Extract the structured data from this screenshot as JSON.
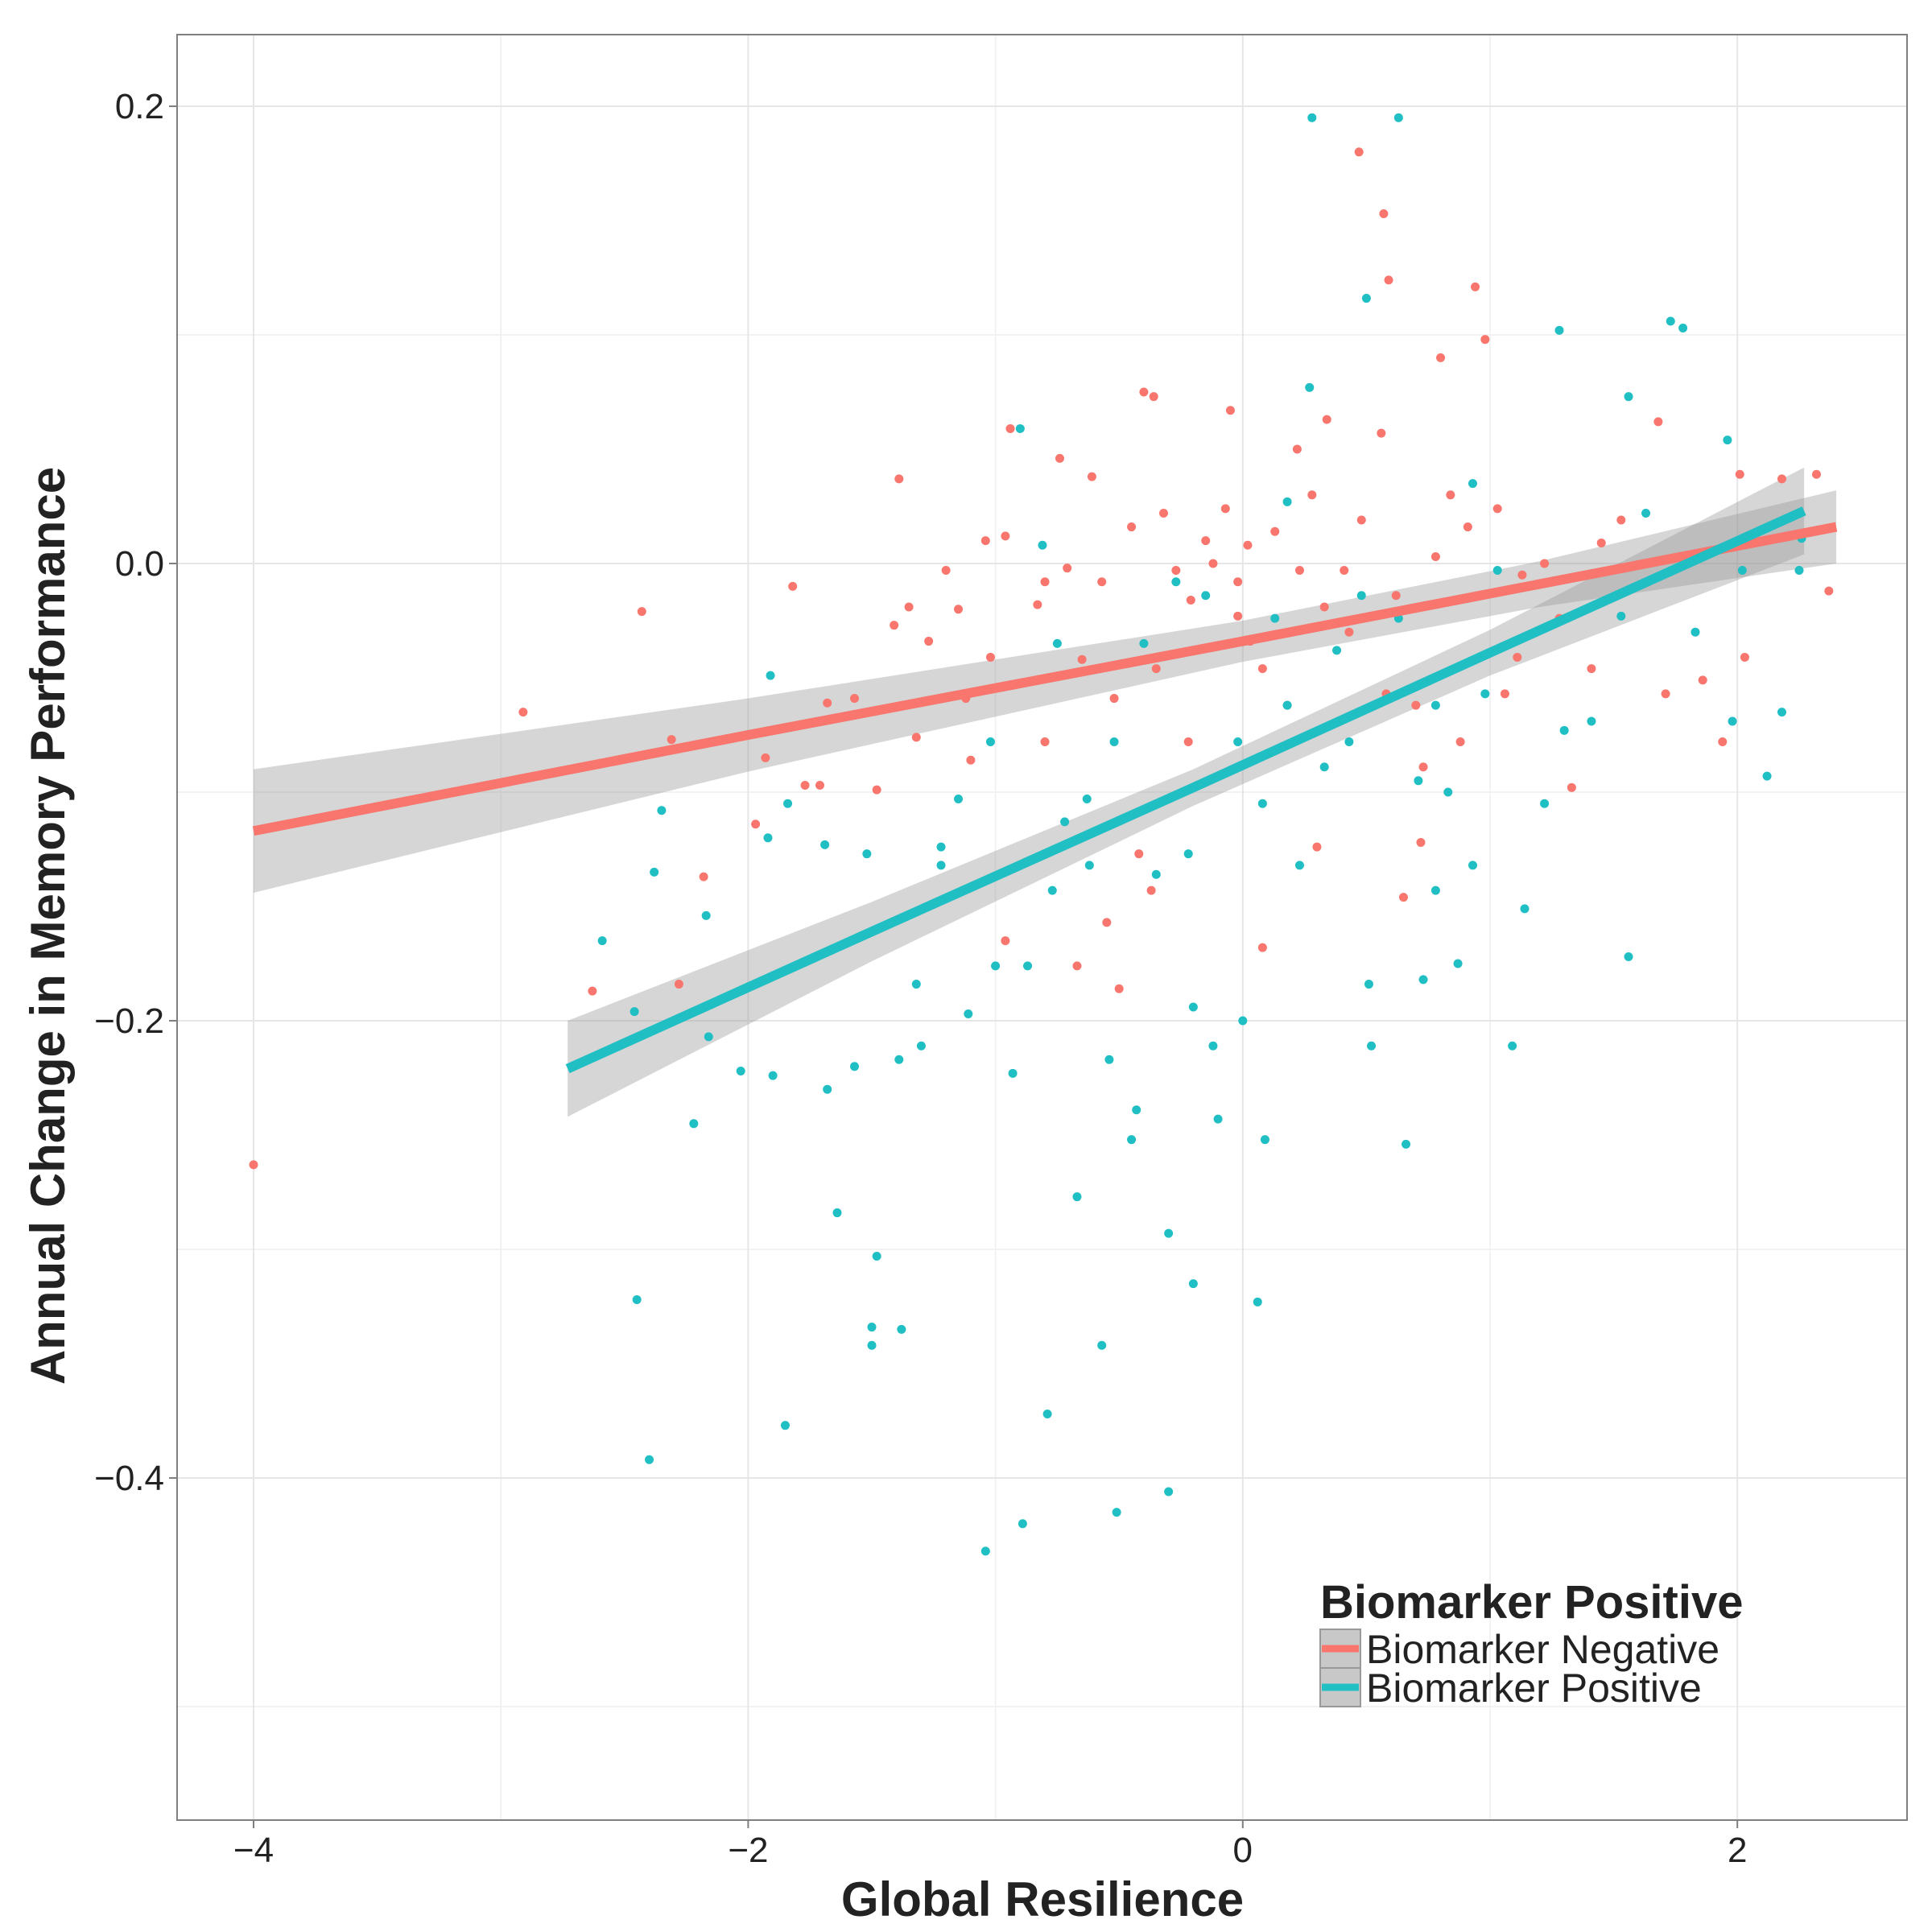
{
  "chart_data": {
    "type": "scatter",
    "xlabel": "Global Resilience",
    "ylabel": "Annual Change in Memory Performance",
    "xlim": [
      -4.3,
      2.7
    ],
    "ylim": [
      -0.55,
      0.23
    ],
    "x_ticks": [
      -4,
      -2,
      0,
      2
    ],
    "x_tick_labels": [
      "−4",
      "−2",
      "0",
      "2"
    ],
    "y_ticks": [
      0.2,
      0.0,
      -0.2,
      -0.4
    ],
    "y_tick_labels": [
      "0.2",
      "0.0",
      "−0.2",
      "−0.4"
    ],
    "grid": true,
    "legend": {
      "title": "Biomarker Positive",
      "placement": "bottom-right"
    },
    "series": [
      {
        "name": "Biomarker Negative",
        "color": "#F8766D",
        "points": [
          [
            -4.0,
            -0.263
          ],
          [
            -2.91,
            -0.065
          ],
          [
            -2.43,
            -0.021
          ],
          [
            -2.31,
            -0.077
          ],
          [
            -2.63,
            -0.187
          ],
          [
            -2.28,
            -0.184
          ],
          [
            -2.18,
            -0.137
          ],
          [
            -1.97,
            -0.114
          ],
          [
            -1.93,
            -0.085
          ],
          [
            -1.82,
            -0.01
          ],
          [
            -1.77,
            -0.097
          ],
          [
            -1.71,
            -0.097
          ],
          [
            -1.68,
            -0.061
          ],
          [
            -1.57,
            -0.059
          ],
          [
            -1.48,
            -0.099
          ],
          [
            -1.39,
            0.037
          ],
          [
            -1.41,
            -0.027
          ],
          [
            -1.35,
            -0.019
          ],
          [
            -1.27,
            -0.034
          ],
          [
            -1.2,
            -0.003
          ],
          [
            -1.15,
            -0.02
          ],
          [
            -1.12,
            -0.059
          ],
          [
            -1.04,
            0.01
          ],
          [
            -1.02,
            -0.041
          ],
          [
            -0.96,
            0.012
          ],
          [
            -0.94,
            0.059
          ],
          [
            -0.83,
            -0.018
          ],
          [
            -0.8,
            -0.008
          ],
          [
            -0.74,
            0.046
          ],
          [
            -0.71,
            -0.002
          ],
          [
            -0.65,
            -0.042
          ],
          [
            -0.61,
            0.038
          ],
          [
            -0.57,
            -0.008
          ],
          [
            -0.52,
            -0.059
          ],
          [
            -0.5,
            -0.186
          ],
          [
            -0.45,
            0.016
          ],
          [
            -0.4,
            0.075
          ],
          [
            -0.36,
            0.073
          ],
          [
            -0.35,
            -0.046
          ],
          [
            -0.32,
            0.022
          ],
          [
            -0.27,
            -0.003
          ],
          [
            -0.21,
            -0.016
          ],
          [
            -0.15,
            0.01
          ],
          [
            -0.12,
            0.0
          ],
          [
            -0.07,
            0.024
          ],
          [
            -0.05,
            0.067
          ],
          [
            -0.02,
            -0.023
          ],
          [
            0.03,
            -0.034
          ],
          [
            0.08,
            -0.046
          ],
          [
            0.13,
            0.014
          ],
          [
            0.18,
            -0.062
          ],
          [
            0.22,
            0.05
          ],
          [
            0.28,
            0.03
          ],
          [
            0.34,
            0.063
          ],
          [
            0.41,
            -0.003
          ],
          [
            0.43,
            -0.03
          ],
          [
            0.47,
            0.18
          ],
          [
            0.57,
            0.153
          ],
          [
            0.59,
            0.124
          ],
          [
            0.56,
            0.057
          ],
          [
            0.62,
            -0.014
          ],
          [
            0.65,
            -0.146
          ],
          [
            0.7,
            -0.062
          ],
          [
            0.72,
            -0.122
          ],
          [
            0.8,
            0.09
          ],
          [
            0.84,
            0.03
          ],
          [
            0.94,
            0.121
          ],
          [
            0.98,
            0.098
          ],
          [
            1.03,
            0.024
          ],
          [
            1.06,
            -0.057
          ],
          [
            1.11,
            -0.041
          ],
          [
            1.22,
            0.0
          ],
          [
            1.33,
            -0.098
          ],
          [
            1.41,
            -0.046
          ],
          [
            1.45,
            0.009
          ],
          [
            1.53,
            0.019
          ],
          [
            1.68,
            0.062
          ],
          [
            1.71,
            -0.057
          ],
          [
            1.86,
            -0.051
          ],
          [
            1.94,
            -0.078
          ],
          [
            2.01,
            0.039
          ],
          [
            2.03,
            -0.041
          ],
          [
            2.18,
            0.037
          ],
          [
            2.32,
            0.039
          ],
          [
            2.37,
            -0.012
          ],
          [
            0.02,
            0.008
          ],
          [
            0.23,
            -0.003
          ],
          [
            0.33,
            -0.019
          ],
          [
            -0.22,
            -0.078
          ],
          [
            -0.42,
            -0.127
          ],
          [
            0.3,
            -0.124
          ],
          [
            0.08,
            -0.168
          ],
          [
            -0.37,
            -0.143
          ],
          [
            -0.67,
            -0.176
          ],
          [
            -0.55,
            -0.157
          ],
          [
            -0.8,
            -0.078
          ],
          [
            -0.96,
            -0.165
          ],
          [
            -1.1,
            -0.086
          ],
          [
            -1.32,
            -0.076
          ],
          [
            0.91,
            0.016
          ],
          [
            1.13,
            -0.005
          ],
          [
            1.28,
            -0.024
          ],
          [
            0.78,
            0.003
          ],
          [
            0.48,
            0.019
          ],
          [
            -0.02,
            -0.008
          ],
          [
            0.88,
            -0.078
          ],
          [
            0.58,
            -0.057
          ],
          [
            0.73,
            -0.089
          ]
        ],
        "fit": {
          "x": [
            -4,
            -2,
            0,
            1.2,
            2.4
          ],
          "y": [
            -0.117,
            -0.075,
            -0.034,
            -0.009,
            0.016
          ],
          "lower": [
            -0.144,
            -0.091,
            -0.043,
            -0.019,
            0.0
          ],
          "upper": [
            -0.09,
            -0.059,
            -0.025,
            0.001,
            0.032
          ]
        }
      },
      {
        "name": "Biomarker Positive",
        "color": "#1FBFC4",
        "points": [
          [
            -2.45,
            -0.322
          ],
          [
            -2.4,
            -0.392
          ],
          [
            -2.22,
            -0.245
          ],
          [
            -2.59,
            -0.165
          ],
          [
            -2.38,
            -0.135
          ],
          [
            -2.35,
            -0.108
          ],
          [
            -2.46,
            -0.196
          ],
          [
            -2.17,
            -0.154
          ],
          [
            -2.16,
            -0.207
          ],
          [
            -2.03,
            -0.222
          ],
          [
            -1.9,
            -0.224
          ],
          [
            -1.85,
            -0.377
          ],
          [
            -1.91,
            -0.049
          ],
          [
            -1.92,
            -0.12
          ],
          [
            -1.84,
            -0.105
          ],
          [
            -1.69,
            -0.123
          ],
          [
            -1.68,
            -0.23
          ],
          [
            -1.64,
            -0.284
          ],
          [
            -1.57,
            -0.22
          ],
          [
            -1.52,
            -0.127
          ],
          [
            -1.5,
            -0.334
          ],
          [
            -1.48,
            -0.303
          ],
          [
            -1.5,
            -0.342
          ],
          [
            -1.39,
            -0.217
          ],
          [
            -1.38,
            -0.335
          ],
          [
            -1.32,
            -0.184
          ],
          [
            -1.3,
            -0.211
          ],
          [
            -1.22,
            -0.124
          ],
          [
            -1.15,
            -0.103
          ],
          [
            -1.11,
            -0.197
          ],
          [
            -1.04,
            -0.432
          ],
          [
            -1.0,
            -0.176
          ],
          [
            -0.93,
            -0.223
          ],
          [
            -0.89,
            -0.42
          ],
          [
            -0.9,
            0.059
          ],
          [
            -0.79,
            -0.372
          ],
          [
            -0.81,
            0.008
          ],
          [
            -0.75,
            -0.035
          ],
          [
            -0.72,
            -0.113
          ],
          [
            -0.67,
            -0.277
          ],
          [
            -0.63,
            -0.103
          ],
          [
            -0.57,
            -0.342
          ],
          [
            -0.54,
            -0.217
          ],
          [
            -0.45,
            -0.252
          ],
          [
            -0.43,
            -0.239
          ],
          [
            -0.35,
            -0.136
          ],
          [
            -0.3,
            -0.406
          ],
          [
            -0.3,
            -0.293
          ],
          [
            -0.51,
            -0.415
          ],
          [
            -0.2,
            -0.315
          ],
          [
            -0.2,
            -0.194
          ],
          [
            -0.12,
            -0.211
          ],
          [
            -0.1,
            -0.243
          ],
          [
            0.0,
            -0.2
          ],
          [
            0.06,
            -0.323
          ],
          [
            0.09,
            -0.252
          ],
          [
            0.18,
            0.027
          ],
          [
            0.27,
            0.077
          ],
          [
            0.28,
            0.195
          ],
          [
            0.33,
            -0.089
          ],
          [
            0.43,
            -0.078
          ],
          [
            0.5,
            0.116
          ],
          [
            0.51,
            -0.184
          ],
          [
            0.52,
            -0.211
          ],
          [
            0.63,
            0.195
          ],
          [
            0.66,
            -0.254
          ],
          [
            0.71,
            -0.095
          ],
          [
            0.73,
            -0.182
          ],
          [
            0.78,
            -0.143
          ],
          [
            0.87,
            -0.175
          ],
          [
            0.78,
            -0.062
          ],
          [
            0.93,
            0.035
          ],
          [
            0.98,
            -0.057
          ],
          [
            1.03,
            -0.003
          ],
          [
            1.09,
            -0.211
          ],
          [
            1.14,
            -0.151
          ],
          [
            1.22,
            -0.105
          ],
          [
            1.28,
            0.102
          ],
          [
            1.3,
            -0.073
          ],
          [
            1.41,
            -0.069
          ],
          [
            1.53,
            -0.023
          ],
          [
            1.56,
            0.073
          ],
          [
            1.56,
            -0.172
          ],
          [
            1.63,
            0.022
          ],
          [
            1.73,
            0.106
          ],
          [
            1.78,
            0.103
          ],
          [
            1.83,
            -0.03
          ],
          [
            1.96,
            0.054
          ],
          [
            1.98,
            -0.069
          ],
          [
            2.02,
            -0.003
          ],
          [
            2.12,
            -0.093
          ],
          [
            2.18,
            -0.065
          ],
          [
            2.25,
            -0.003
          ],
          [
            2.26,
            0.011
          ],
          [
            -0.27,
            -0.008
          ],
          [
            -0.4,
            -0.035
          ],
          [
            -0.15,
            -0.014
          ],
          [
            0.13,
            -0.024
          ],
          [
            0.38,
            -0.038
          ],
          [
            -0.52,
            -0.078
          ],
          [
            -0.62,
            -0.132
          ],
          [
            -0.77,
            -0.143
          ],
          [
            -1.02,
            -0.078
          ],
          [
            -1.22,
            -0.132
          ],
          [
            -0.02,
            -0.078
          ],
          [
            0.08,
            -0.105
          ],
          [
            0.23,
            -0.132
          ],
          [
            0.48,
            -0.014
          ],
          [
            0.63,
            -0.024
          ],
          [
            0.83,
            -0.1
          ],
          [
            0.93,
            -0.132
          ],
          [
            0.18,
            -0.062
          ],
          [
            -0.22,
            -0.127
          ],
          [
            -0.87,
            -0.176
          ]
        ],
        "fit": {
          "x": [
            -2.73,
            -1.5,
            -0.2,
            1.0,
            2.27
          ],
          "y": [
            -0.221,
            -0.161,
            -0.098,
            -0.039,
            0.023
          ],
          "lower": [
            -0.242,
            -0.174,
            -0.106,
            -0.049,
            0.004
          ],
          "upper": [
            -0.2,
            -0.148,
            -0.09,
            -0.029,
            0.042
          ]
        }
      }
    ]
  }
}
